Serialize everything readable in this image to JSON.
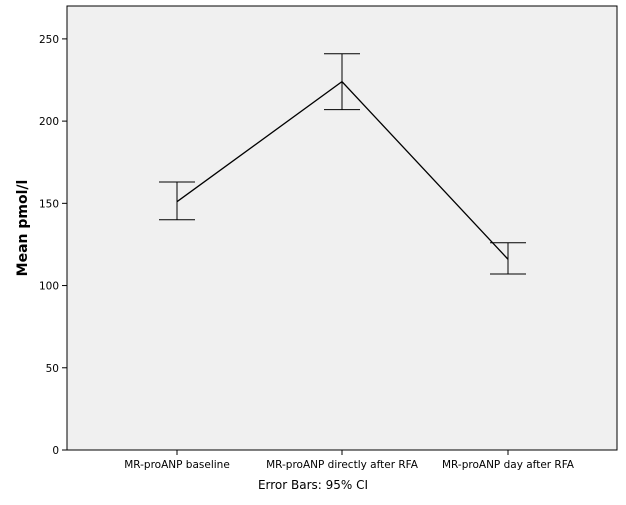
{
  "chart_data": {
    "type": "line",
    "title": "",
    "xlabel": "",
    "ylabel": "Mean pmol/l",
    "footnote": "Error Bars: 95% CI",
    "categories": [
      "MR-proANP baseline",
      "MR-proANP directly after RFA",
      "MR-proANP day after RFA"
    ],
    "series": [
      {
        "values": [
          151,
          224,
          116
        ],
        "ci_lower": [
          140,
          207,
          107
        ],
        "ci_upper": [
          163,
          241,
          126
        ]
      }
    ],
    "ylim": [
      0,
      270
    ],
    "yticks": [
      0,
      50,
      100,
      150,
      200,
      250
    ],
    "grid": false,
    "colors": {
      "plot_background": "#f0f0f0",
      "line": "#000000"
    }
  }
}
